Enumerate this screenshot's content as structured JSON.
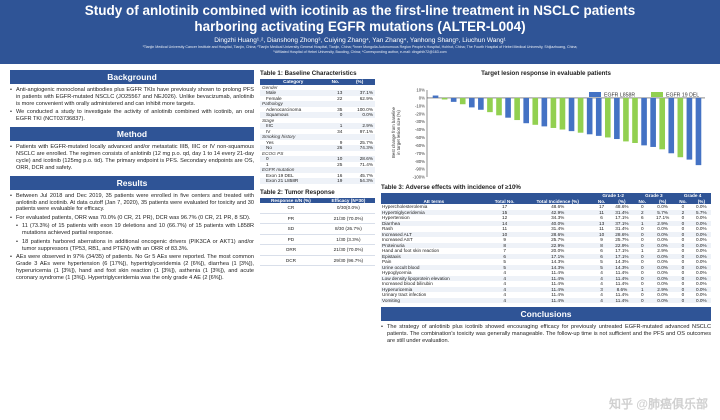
{
  "header": {
    "title_line1": "Study of anlotinib combined with icotinib as the first-line treatment in NSCLC patients",
    "title_line2": "harboring activating EGFR mutations (ALTER-L004)",
    "authors": "Dingzhi Huang¹˒², Dianshong Zhong³, Cuiying Zhang⁴, Yan Zhang⁴, Yanhong Shang⁵, Liuchun Wang¹",
    "affiliations": "¹Tianjin Medical University Cancer Institute and Hospital, Tianjin, China; ²Tianjin Medical University General Hospital, Tianjin, China; ³Inner Mongolia Autonomous Region People's Hospital, Hohhot, China; The Fourth Hospital of Hebei Medical University, Shijiazhuang, China;",
    "affiliations2": "⁵Affiliated Hospital of Hebei University, Baoding, China; *Corresponding author, e-mail: dingzhih72@163.com"
  },
  "background": {
    "heading": "Background",
    "items": [
      "Anti-angiogenic monoclonal antibodies plus EGFR TKIs have previously shown to prolong PFS in patients with EGFR-mutated NSCLC (JO25567 and NEJ026). Unlike bevacizumab, anlotinib is more convenient with orally administered and can inhibit more targets.",
      "We conducted a study to investigate the activity of anlotinib combined with icotinib, an oral EGFR TKI (NCT03736837)."
    ]
  },
  "method": {
    "heading": "Method",
    "items": [
      "Patients with EGFR-mutated locally advanced and/or metastatic IIIB, IIIC or IV non-squamous NSCLC are enrolled. The regimen consists of anlotinib (12 mg p.o. qd, day 1 to 14 every 21-day cycle) and icotinib (125mg p.o. tid). The primary endpoint is PFS. Secondary endpoints are OS, ORR, DCR and safety."
    ]
  },
  "results": {
    "heading": "Results",
    "items": [
      {
        "text": "Between Jul 2018 and Dec 2019, 35 patients were enrolled in five centers and treated with anlotinib and icotinib. At data cutoff (Jan 7, 2020), 35 patients were evaluated for toxicity and 30 patients were evaluable for efficacy.",
        "sub": false
      },
      {
        "text": "For evaluated patients, ORR was 70.0% (0 CR, 21 PR), DCR was 96.7% (0 CR, 21 PR, 8 SD).",
        "sub": false
      },
      {
        "text": "11 (73.3%) of 15 patients with exon 19 deletions and 10 (66.7%) of 15 patients with L858R mutations achieved partial response.",
        "sub": true
      },
      {
        "text": "18 patients harbored aberrations in additional oncogenic drivers (PIK3CA or AKT1) and/or tumor suppressors (TP53, RB1, and PTEN) with an ORR of 83.3%.",
        "sub": true
      },
      {
        "text": "AEs were observed in 97% (34/35) of patients. No Gr 5 AEs were reported. The most common Grade 3 AEs were hypertension (6 [17%]), hypertriglyceridemia (2 [6%]), diarrhea (1 [3%]), hyperuricemia (1 [3%]), hand and foot skin reaction (1 [3%]), asthenia (1 [3%]), and acute coronary syndrome (1 [3%]). Hypertriglyceridemia was the only grade 4 AE (2 [6%]).",
        "sub": false
      }
    ]
  },
  "table1": {
    "title": "Table 1: Baseline Characteristics",
    "headers": [
      "Category",
      "No.",
      "(%)"
    ],
    "rows": [
      {
        "type": "group",
        "label": "Gender"
      },
      {
        "type": "row",
        "cells": [
          "Male",
          "13",
          "37.1%"
        ]
      },
      {
        "type": "row",
        "cells": [
          "Female",
          "22",
          "62.9%"
        ]
      },
      {
        "type": "group",
        "label": "Pathology"
      },
      {
        "type": "row",
        "cells": [
          "Adenocarcinoma",
          "35",
          "100.0%"
        ]
      },
      {
        "type": "row",
        "cells": [
          "Squamous",
          "0",
          "0.0%"
        ]
      },
      {
        "type": "group",
        "label": "Stage"
      },
      {
        "type": "row",
        "cells": [
          "IIIC",
          "1",
          "2.9%"
        ]
      },
      {
        "type": "row",
        "cells": [
          "IV",
          "34",
          "97.1%"
        ]
      },
      {
        "type": "group",
        "label": "Smoking history"
      },
      {
        "type": "row",
        "cells": [
          "Yes",
          "9",
          "25.7%"
        ]
      },
      {
        "type": "row",
        "cells": [
          "No",
          "26",
          "74.3%"
        ]
      },
      {
        "type": "group",
        "label": "ECOG PS"
      },
      {
        "type": "row",
        "cells": [
          "0",
          "10",
          "28.6%"
        ]
      },
      {
        "type": "row",
        "cells": [
          "1",
          "25",
          "71.4%"
        ]
      },
      {
        "type": "group",
        "label": "EGFR mutation"
      },
      {
        "type": "row",
        "cells": [
          "Exon 19 DEL",
          "16",
          "45.7%"
        ]
      },
      {
        "type": "row",
        "cells": [
          "Exon 21 L858R",
          "19",
          "54.3%"
        ]
      }
    ]
  },
  "table2": {
    "title": "Table 2: Tumor Response",
    "headers": [
      "Response n/N (%)",
      "Efficacy (N=30)"
    ],
    "rows": [
      [
        "CR",
        "0/30(0.0%)"
      ],
      [
        "PR",
        "21/30 (70.0%)"
      ],
      [
        "SD",
        "8/30 (26.7%)"
      ],
      [
        "PD",
        "1/30 (3.3%)"
      ],
      [
        "ORR",
        "21/30 (70.0%)"
      ],
      [
        "DCR",
        "29/30 (96.7%)"
      ]
    ]
  },
  "table3": {
    "title": "Table 3: Adverse effects with incidence of ≥10%",
    "group_headers": [
      "Grade 1-2",
      "Grade 3",
      "Grade 4"
    ],
    "headers": [
      "AE terms",
      "Total No.",
      "Total Incidence (%)",
      "No.",
      "(%)",
      "No.",
      "(%)",
      "No.",
      "(%)"
    ],
    "rows": [
      [
        "Hypercholesterolemia",
        "17",
        "48.6%",
        "17",
        "48.6%",
        "0",
        "0.0%",
        "0",
        "0.0%"
      ],
      [
        "Hypertriglyceridemia",
        "15",
        "42.9%",
        "11",
        "31.4%",
        "2",
        "5.7%",
        "2",
        "5.7%"
      ],
      [
        "Hypertension",
        "12",
        "34.3%",
        "6",
        "17.1%",
        "6",
        "17.1%",
        "0",
        "0.0%"
      ],
      [
        "Diarrhea",
        "14",
        "40.0%",
        "13",
        "37.1%",
        "1",
        "2.9%",
        "0",
        "0.0%"
      ],
      [
        "Rash",
        "11",
        "31.4%",
        "11",
        "31.4%",
        "0",
        "0.0%",
        "0",
        "0.0%"
      ],
      [
        "Increased ALT",
        "10",
        "28.6%",
        "10",
        "28.6%",
        "0",
        "0.0%",
        "0",
        "0.0%"
      ],
      [
        "Increased AST",
        "9",
        "25.7%",
        "9",
        "25.7%",
        "0",
        "0.0%",
        "0",
        "0.0%"
      ],
      [
        "Proteinuria",
        "8",
        "22.9%",
        "8",
        "22.9%",
        "0",
        "0.0%",
        "0",
        "0.0%"
      ],
      [
        "Hand and foot skin reaction",
        "7",
        "20.0%",
        "6",
        "17.1%",
        "1",
        "2.9%",
        "0",
        "0.0%"
      ],
      [
        "Epistaxis",
        "6",
        "17.1%",
        "6",
        "17.1%",
        "0",
        "0.0%",
        "0",
        "0.0%"
      ],
      [
        "Pain",
        "5",
        "14.3%",
        "5",
        "14.3%",
        "0",
        "0.0%",
        "0",
        "0.0%"
      ],
      [
        "Urine occult blood",
        "5",
        "14.3%",
        "5",
        "14.3%",
        "0",
        "0.0%",
        "0",
        "0.0%"
      ],
      [
        "Hypoglycemia",
        "4",
        "11.4%",
        "4",
        "11.4%",
        "0",
        "0.0%",
        "0",
        "0.0%"
      ],
      [
        "Low density lipoprotein elevation",
        "4",
        "11.4%",
        "4",
        "11.4%",
        "0",
        "0.0%",
        "0",
        "0.0%"
      ],
      [
        "Increased blood bilirubin",
        "4",
        "11.4%",
        "4",
        "11.4%",
        "0",
        "0.0%",
        "0",
        "0.0%"
      ],
      [
        "Hyperuricemia",
        "4",
        "11.4%",
        "3",
        "8.6%",
        "1",
        "2.9%",
        "0",
        "0.0%"
      ],
      [
        "Urinary tract infection",
        "4",
        "11.4%",
        "4",
        "11.4%",
        "0",
        "0.0%",
        "0",
        "0.0%"
      ],
      [
        "Vomiting",
        "4",
        "11.4%",
        "4",
        "11.4%",
        "0",
        "0.0%",
        "0",
        "0.0%"
      ]
    ]
  },
  "chart_data": {
    "type": "bar",
    "title": "Target lesion response in evaluable patients",
    "ylabel": "Best change from baseline in target lesion size (%)",
    "ylim": [
      -100,
      10
    ],
    "yticks": [
      "10%",
      "0%",
      "-10%",
      "-20%",
      "-30%",
      "-40%",
      "-50%",
      "-60%",
      "-70%",
      "-80%",
      "-90%",
      "-100%"
    ],
    "series": [
      {
        "name": "EGFR L858R",
        "color": "#4472c4"
      },
      {
        "name": "EGFR 19 DEL",
        "color": "#92d050"
      }
    ],
    "values": [
      3,
      -2,
      -5,
      -8,
      -12,
      -15,
      -18,
      -22,
      -25,
      -28,
      -32,
      -34,
      -36,
      -38,
      -40,
      -42,
      -44,
      -46,
      -48,
      -50,
      -52,
      -55,
      -57,
      -60,
      -62,
      -65,
      -70,
      -75,
      -78,
      -85
    ],
    "groups": [
      0,
      1,
      0,
      1,
      0,
      0,
      1,
      1,
      0,
      1,
      0,
      1,
      0,
      1,
      1,
      0,
      1,
      0,
      0,
      1,
      0,
      1,
      1,
      0,
      0,
      1,
      0,
      1,
      0,
      0
    ]
  },
  "conclusions": {
    "heading": "Conclusions",
    "items": [
      "The strategy of anlotinib plus icotinib showed encouraging efficacy for previously untreated EGFR-mutated advanced NSCLC patients. The combination's toxicity was generally manageable. The follow-up time is not sufficient and the PFS and OS outcomes are still under evaluation."
    ]
  },
  "watermark": "知乎 @肺癌俱乐部"
}
